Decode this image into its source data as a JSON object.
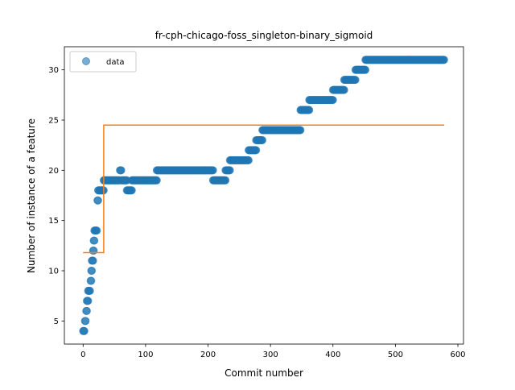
{
  "chart_data": {
    "type": "scatter",
    "title": "fr-cph-chicago-foss_singleton-binary_sigmoid",
    "xlabel": "Commit number",
    "ylabel": "Number of instance of a feature",
    "xlim": [
      -30,
      609
    ],
    "ylim": [
      2.7,
      32.3
    ],
    "xticks": [
      0,
      100,
      200,
      300,
      400,
      500,
      600
    ],
    "yticks": [
      5,
      10,
      15,
      20,
      25,
      30
    ],
    "legend": {
      "position": "top-left",
      "entries": [
        "data"
      ]
    },
    "grid": false,
    "colors": {
      "data": "#1f77b4",
      "fit": "#ff7f0e"
    },
    "series": [
      {
        "name": "data",
        "kind": "scatter",
        "segments": [
          {
            "x_start": 0,
            "x_end": 2,
            "y": 4
          },
          {
            "x_start": 3,
            "x_end": 4,
            "y": 5
          },
          {
            "x_start": 5,
            "x_end": 6,
            "y": 6
          },
          {
            "x_start": 6,
            "x_end": 8,
            "y": 7
          },
          {
            "x_start": 8,
            "x_end": 11,
            "y": 8
          },
          {
            "x_start": 12,
            "x_end": 13,
            "y": 9
          },
          {
            "x_start": 13,
            "x_end": 14,
            "y": 10
          },
          {
            "x_start": 14,
            "x_end": 16,
            "y": 11
          },
          {
            "x_start": 16,
            "x_end": 17,
            "y": 12
          },
          {
            "x_start": 17,
            "x_end": 18,
            "y": 13
          },
          {
            "x_start": 18,
            "x_end": 22,
            "y": 14
          },
          {
            "x_start": 23,
            "x_end": 24,
            "y": 17
          },
          {
            "x_start": 24,
            "x_end": 33,
            "y": 18
          },
          {
            "x_start": 33,
            "x_end": 58,
            "y": 19
          },
          {
            "x_start": 59,
            "x_end": 61,
            "y": 20
          },
          {
            "x_start": 61,
            "x_end": 70,
            "y": 19
          },
          {
            "x_start": 70,
            "x_end": 78,
            "y": 18
          },
          {
            "x_start": 78,
            "x_end": 118,
            "y": 19
          },
          {
            "x_start": 118,
            "x_end": 208,
            "y": 20
          },
          {
            "x_start": 208,
            "x_end": 228,
            "y": 19
          },
          {
            "x_start": 228,
            "x_end": 235,
            "y": 20
          },
          {
            "x_start": 235,
            "x_end": 265,
            "y": 21
          },
          {
            "x_start": 265,
            "x_end": 277,
            "y": 22
          },
          {
            "x_start": 277,
            "x_end": 287,
            "y": 23
          },
          {
            "x_start": 287,
            "x_end": 348,
            "y": 24
          },
          {
            "x_start": 348,
            "x_end": 362,
            "y": 26
          },
          {
            "x_start": 362,
            "x_end": 400,
            "y": 27
          },
          {
            "x_start": 400,
            "x_end": 418,
            "y": 28
          },
          {
            "x_start": 418,
            "x_end": 436,
            "y": 29
          },
          {
            "x_start": 436,
            "x_end": 452,
            "y": 30
          },
          {
            "x_start": 452,
            "x_end": 578,
            "y": 31
          }
        ]
      },
      {
        "name": "",
        "kind": "line",
        "x": [
          0,
          33,
          33,
          578
        ],
        "y": [
          11.8,
          11.8,
          24.5,
          24.5
        ]
      }
    ]
  }
}
